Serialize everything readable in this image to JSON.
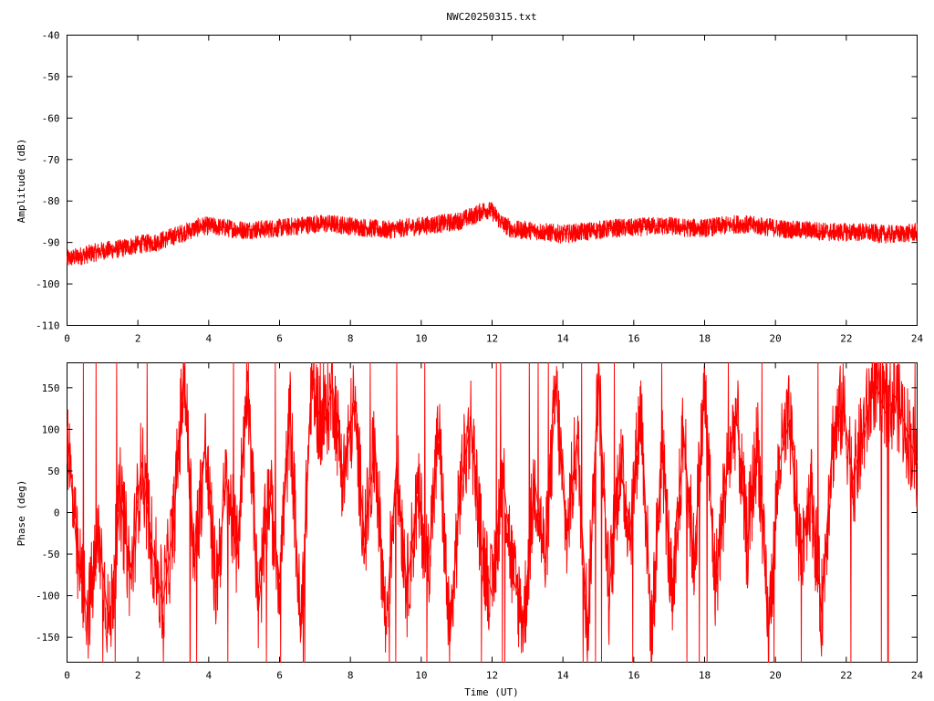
{
  "page": {
    "title": "NWC20250315.txt"
  },
  "colors": {
    "series": "#ff0000",
    "axes": "#000000",
    "background": "#ffffff"
  },
  "chart_data": [
    {
      "type": "line",
      "id": "amplitude",
      "title": "NWC20250315.txt",
      "xlabel": "",
      "ylabel": "Amplitude (dB)",
      "xlim": [
        0,
        24
      ],
      "ylim": [
        -110,
        -40
      ],
      "xticks": [
        0,
        2,
        4,
        6,
        8,
        10,
        12,
        14,
        16,
        18,
        20,
        22,
        24
      ],
      "yticks": [
        -40,
        -50,
        -60,
        -70,
        -80,
        -90,
        -100,
        -110
      ],
      "xtick_labels": [
        "0",
        "2",
        "4",
        "6",
        "8",
        "10",
        "12",
        "14",
        "16",
        "18",
        "20",
        "22",
        "24"
      ],
      "ytick_labels": [
        "-40",
        "-50",
        "-60",
        "-70",
        "-80",
        "-90",
        "-100",
        "-110"
      ],
      "grid": false,
      "legend": "none",
      "series": [
        {
          "color": "#ff0000",
          "x": [
            0,
            0.5,
            1,
            1.5,
            2,
            2.5,
            3,
            3.5,
            3.8,
            4,
            4.5,
            5,
            5.5,
            6,
            6.5,
            7,
            7.5,
            8,
            8.5,
            9,
            9.5,
            10,
            10.5,
            11,
            11.5,
            11.8,
            12,
            12.3,
            12.6,
            13,
            13.5,
            14,
            14.5,
            15,
            15.5,
            16,
            16.5,
            17,
            17.5,
            18,
            18.5,
            19,
            19.5,
            20,
            20.5,
            21,
            21.5,
            22,
            22.5,
            23,
            23.5,
            24
          ],
          "y": [
            -94,
            -93,
            -92,
            -91.5,
            -90.5,
            -90,
            -88.5,
            -87,
            -86,
            -86,
            -86.5,
            -87,
            -86.8,
            -86.5,
            -86,
            -85.5,
            -85.5,
            -86,
            -86.5,
            -87,
            -86.5,
            -86,
            -85.5,
            -85,
            -83.5,
            -82,
            -82.5,
            -85.5,
            -87,
            -87,
            -87.5,
            -88,
            -87.5,
            -87,
            -86.5,
            -86.5,
            -86,
            -86,
            -86.5,
            -86.5,
            -86,
            -85.5,
            -86,
            -86.5,
            -87,
            -87,
            -87.5,
            -87.5,
            -87.5,
            -88,
            -88,
            -87.5
          ],
          "noise_amplitude": 2.2
        }
      ]
    },
    {
      "type": "line",
      "id": "phase",
      "title": "",
      "xlabel": "Time (UT)",
      "ylabel": "Phase (deg)",
      "xlim": [
        0,
        24
      ],
      "ylim": [
        -180,
        180
      ],
      "xticks": [
        0,
        2,
        4,
        6,
        8,
        10,
        12,
        14,
        16,
        18,
        20,
        22,
        24
      ],
      "yticks": [
        150,
        100,
        50,
        0,
        -50,
        -100,
        -150
      ],
      "xtick_labels": [
        "0",
        "2",
        "4",
        "6",
        "8",
        "10",
        "12",
        "14",
        "16",
        "18",
        "20",
        "22",
        "24"
      ],
      "ytick_labels": [
        "150",
        "100",
        "50",
        "0",
        "-50",
        "-100",
        "-150"
      ],
      "grid": false,
      "legend": "none",
      "series": [
        {
          "color": "#ff0000",
          "x": [
            0,
            0.3,
            0.6,
            0.9,
            1.2,
            1.5,
            1.8,
            2.1,
            2.4,
            2.7,
            3,
            3.3,
            3.6,
            3.9,
            4.2,
            4.5,
            4.8,
            5.1,
            5.4,
            5.7,
            6,
            6.3,
            6.6,
            6.9,
            7.2,
            7.5,
            7.8,
            8.1,
            8.4,
            8.7,
            9,
            9.3,
            9.6,
            9.9,
            10.2,
            10.5,
            10.8,
            11.1,
            11.4,
            11.7,
            12,
            12.3,
            12.6,
            12.9,
            13.2,
            13.5,
            13.8,
            14.1,
            14.4,
            14.7,
            15,
            15.3,
            15.6,
            15.9,
            16.2,
            16.5,
            16.8,
            17.1,
            17.4,
            17.7,
            18,
            18.3,
            18.6,
            18.9,
            19.2,
            19.5,
            19.8,
            20.1,
            20.4,
            20.7,
            21,
            21.3,
            21.6,
            21.9,
            22.2,
            22.5,
            22.8,
            23.1,
            23.4,
            23.7,
            24
          ],
          "y": [
            100,
            -60,
            -120,
            -30,
            -140,
            20,
            -80,
            60,
            -40,
            -110,
            -20,
            170,
            -60,
            80,
            -90,
            40,
            -50,
            170,
            -120,
            30,
            -80,
            120,
            -150,
            160,
            100,
            150,
            40,
            130,
            -30,
            80,
            -140,
            60,
            -90,
            20,
            -60,
            100,
            -160,
            30,
            110,
            -40,
            -100,
            50,
            -80,
            -130,
            40,
            -60,
            150,
            -30,
            90,
            -140,
            170,
            -100,
            60,
            -20,
            130,
            -150,
            80,
            -120,
            100,
            -60,
            150,
            -90,
            40,
            120,
            -40,
            90,
            -150,
            60,
            110,
            -50,
            30,
            -120,
            80,
            130,
            40,
            100,
            160,
            120,
            140,
            100,
            60
          ],
          "noise_amplitude": 60
        }
      ]
    }
  ]
}
